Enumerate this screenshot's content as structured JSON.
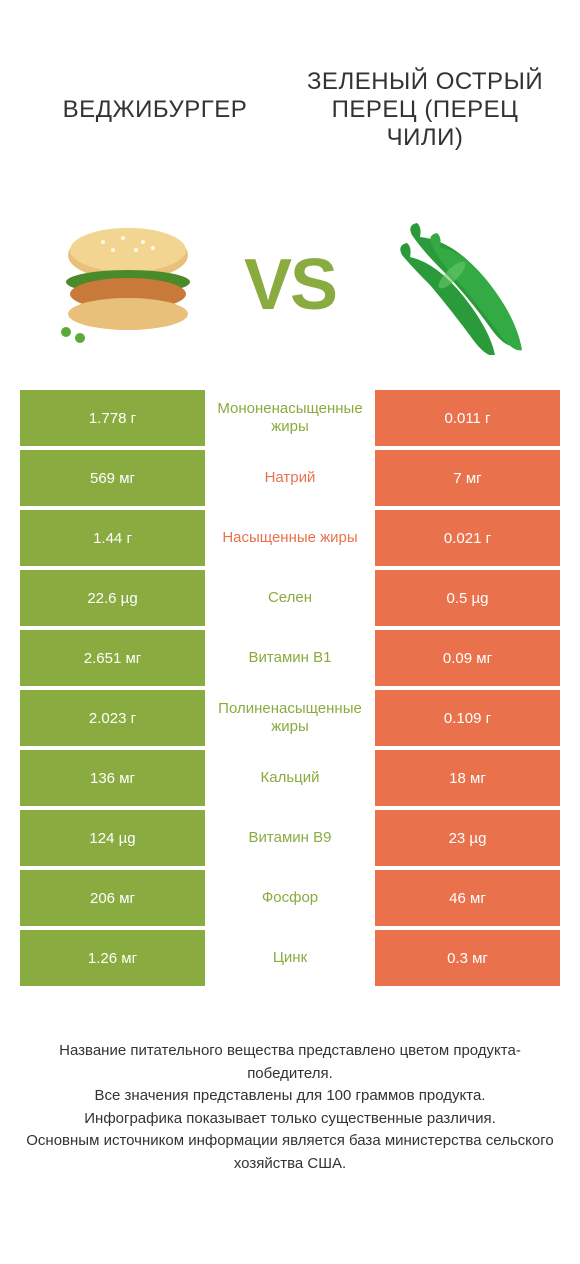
{
  "colors": {
    "left": "#8aab3f",
    "right": "#e9724d",
    "bg": "#ffffff",
    "text": "#333333"
  },
  "header": {
    "left": "ВЕДЖИБУРГЕР",
    "right": "ЗЕЛЕНЫЙ ОСТРЫЙ ПЕРЕЦ (ПЕРЕЦ ЧИЛИ)"
  },
  "vs": "VS",
  "rows": [
    {
      "left": "1.778 г",
      "mid": "Мононенасыщенные жиры",
      "right": "0.011 г",
      "winner": "left"
    },
    {
      "left": "569 мг",
      "mid": "Натрий",
      "right": "7 мг",
      "winner": "right"
    },
    {
      "left": "1.44 г",
      "mid": "Насыщенные жиры",
      "right": "0.021 г",
      "winner": "right"
    },
    {
      "left": "22.6 µg",
      "mid": "Селен",
      "right": "0.5 µg",
      "winner": "left"
    },
    {
      "left": "2.651 мг",
      "mid": "Витамин В1",
      "right": "0.09 мг",
      "winner": "left"
    },
    {
      "left": "2.023 г",
      "mid": "Полиненасыщенные жиры",
      "right": "0.109 г",
      "winner": "left"
    },
    {
      "left": "136 мг",
      "mid": "Кальций",
      "right": "18 мг",
      "winner": "left"
    },
    {
      "left": "124 µg",
      "mid": "Витамин В9",
      "right": "23 µg",
      "winner": "left"
    },
    {
      "left": "206 мг",
      "mid": "Фосфор",
      "right": "46 мг",
      "winner": "left"
    },
    {
      "left": "1.26 мг",
      "mid": "Цинк",
      "right": "0.3 мг",
      "winner": "left"
    }
  ],
  "footnotes": [
    "Название питательного вещества представлено цветом продукта-победителя.",
    "Все значения представлены для 100 граммов продукта.",
    "Инфографика показывает только существенные различия.",
    "Основным источником информации является база министерства сельского хозяйства США."
  ]
}
